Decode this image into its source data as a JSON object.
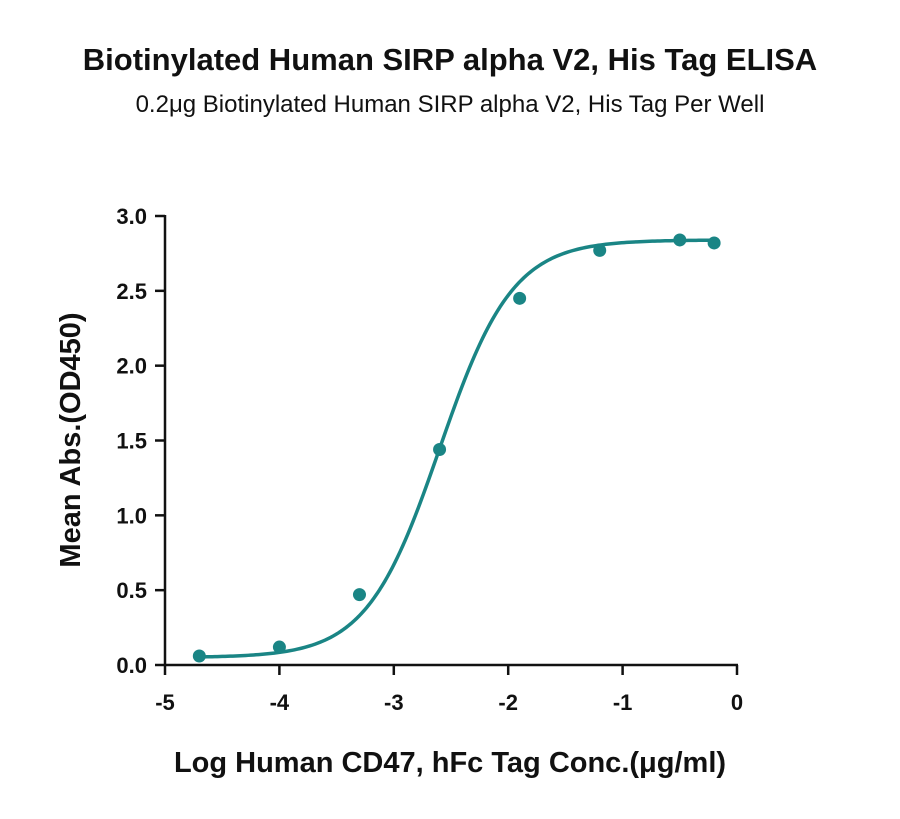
{
  "chart_data": {
    "type": "scatter",
    "title": "Biotinylated Human SIRP alpha V2, His Tag ELISA",
    "subtitle": "0.2μg Biotinylated Human SIRP alpha V2, His Tag Per Well",
    "xlabel": "Log Human CD47, hFc Tag Conc.(μg/ml)",
    "ylabel": "Mean Abs.(OD450)",
    "xlim": [
      -5,
      0
    ],
    "ylim": [
      0,
      3.0
    ],
    "xticks": [
      "-5",
      "-4",
      "-3",
      "-2",
      "-1",
      "0"
    ],
    "yticks": [
      "0.0",
      "0.5",
      "1.0",
      "1.5",
      "2.0",
      "2.5",
      "3.0"
    ],
    "color": "#1a8585",
    "grid": false,
    "points": {
      "x": [
        -4.7,
        -4.0,
        -3.3,
        -2.6,
        -1.9,
        -1.2,
        -0.5,
        -0.2
      ],
      "y": [
        0.06,
        0.12,
        0.47,
        1.44,
        2.45,
        2.77,
        2.84,
        2.82
      ]
    },
    "fit": {
      "model": "4PL",
      "bottom": 0.05,
      "top": 2.84,
      "log_ec50": -2.6,
      "hill_slope": 1.36
    }
  }
}
